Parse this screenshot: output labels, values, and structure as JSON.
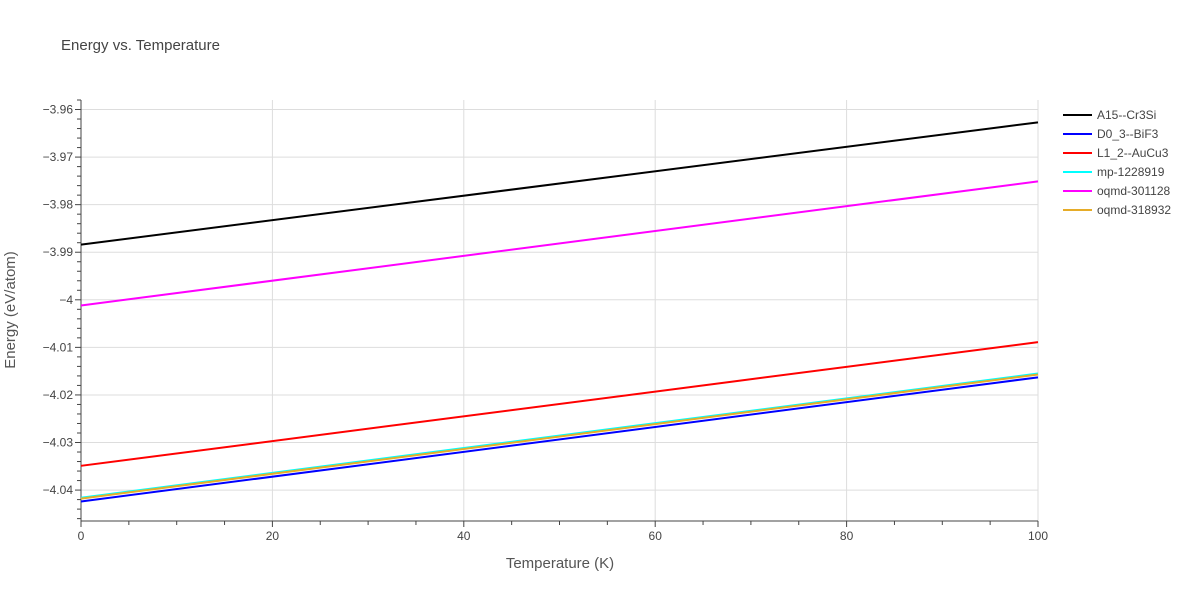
{
  "chart_data": {
    "type": "line",
    "title": "Energy vs. Temperature",
    "xlabel": "Temperature (K)",
    "ylabel": "Energy (eV/atom)",
    "xlim": [
      0,
      100
    ],
    "ylim": [
      -4.0465,
      -3.958
    ],
    "x_ticks": [
      0,
      20,
      40,
      60,
      80,
      100
    ],
    "x_tick_labels": [
      "0",
      "20",
      "40",
      "60",
      "80",
      "100"
    ],
    "y_ticks": [
      -4.04,
      -4.03,
      -4.02,
      -4.01,
      -4.0,
      -3.99,
      -3.98,
      -3.97,
      -3.96
    ],
    "y_tick_labels": [
      "−4.04",
      "−4.03",
      "−4.02",
      "−4.01",
      "−4",
      "−3.99",
      "−3.98",
      "−3.97",
      "−3.96"
    ],
    "grid": true,
    "legend_position": "top-right",
    "series": [
      {
        "name": "A15--Cr3Si",
        "color": "#000000",
        "x": [
          0,
          100
        ],
        "values": [
          -3.9884,
          -3.9627
        ]
      },
      {
        "name": "D0_3--BiF3",
        "color": "#0000ff",
        "x": [
          0,
          100
        ],
        "values": [
          -4.0424,
          -4.0163
        ]
      },
      {
        "name": "L1_2--AuCu3",
        "color": "#ff0000",
        "x": [
          0,
          100
        ],
        "values": [
          -4.0349,
          -4.0089
        ]
      },
      {
        "name": "mp-1228919",
        "color": "#00ffff",
        "x": [
          0,
          100
        ],
        "values": [
          -4.0416,
          -4.0155
        ]
      },
      {
        "name": "oqmd-301128",
        "color": "#ff00ff",
        "x": [
          0,
          100
        ],
        "values": [
          -4.0012,
          -3.9751
        ]
      },
      {
        "name": "oqmd-318932",
        "color": "#e6ac28",
        "x": [
          0,
          100
        ],
        "values": [
          -4.0418,
          -4.0157
        ]
      }
    ]
  }
}
